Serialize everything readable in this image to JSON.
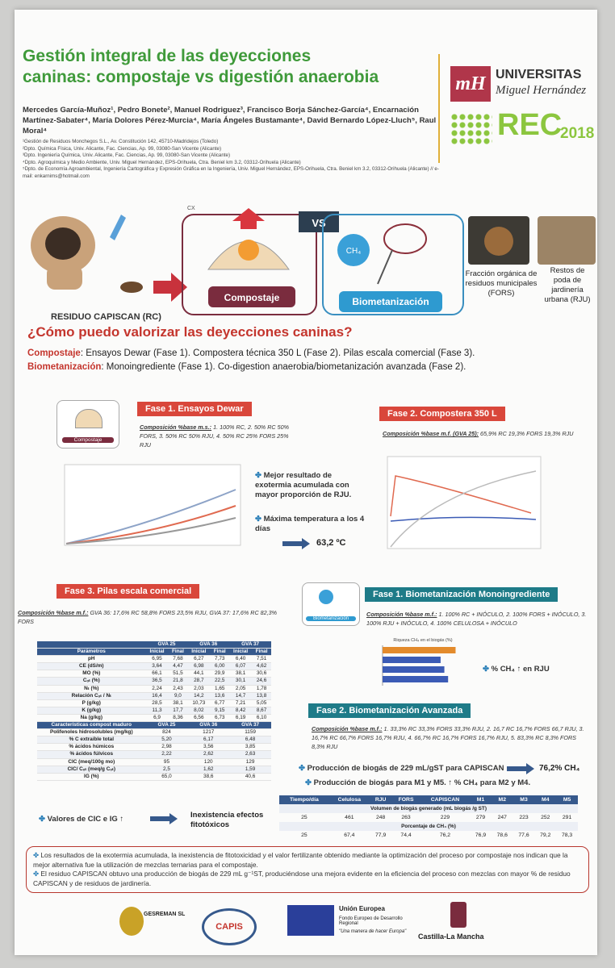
{
  "header": {
    "title_lines": [
      "Gestión integral de las deyecciones",
      "caninas: compostaje vs digestión anaerobia"
    ],
    "authors": "Mercedes García-Muñoz¹, Pedro Bonete², Manuel Rodriguez³, Francisco Borja Sánchez-García⁴, Encarnación Martínez-Sabater⁴, María Dolores Pérez-Murcia⁴, María Ángeles Bustamante⁴, David Bernardo López-Lluch⁵, Raul Moral⁴",
    "affiliations": [
      "¹Gestión de Residuos Monchegos S.L., Av. Constitución 142, 45710-Madridejos (Toledo)",
      "²Dpto. Química Física, Univ. Alicante, Fac. Ciencias, Ap. 99, 03080-San Vicente (Alicante)",
      "³Dpto. Ingeniería Química, Univ. Alicante, Fac. Ciencias, Ap. 99, 03080-San Vicente (Alicante)",
      "⁴Dpto. Agroquímica y Medio Ambiente, Univ. Miguel Hernández, EPS-Orihuela, Ctra. Beniel km 3.2, 03312-Orihuela (Alicante)",
      "⁵Dpto. de Economía Agroambiental, Ingeniería Cartográfica y Expresión Gráfica en la Ingeniería, Univ. Miguel Hernández, EPS-Orihuela, Ctra. Beniel km 3.2, 03312-Orihuela (Alicante)  // e-mail: enkarnims@hotmail.com"
    ]
  },
  "logos": {
    "umh_1": "UNIVERSITAS",
    "umh_2": "Miguel Hernández",
    "rec": "REC",
    "rec_year": "2018"
  },
  "diagram": {
    "vs": "VS",
    "cx": "CX",
    "ch4": "CH₄",
    "compostaje": "Compostaje",
    "biometanizacion": "Biometanización",
    "residuo": "RESIDUO CAPISCAN (RC)",
    "fors": "Fracción orgánica de residuos municipales (FORS)",
    "rju": "Restos de poda de jardinería urbana (RJU)"
  },
  "question": {
    "title": "¿Cómo puedo valorizar las deyecciones caninas?",
    "lines": [
      {
        "label": "Compostaje",
        "text": ": Ensayos Dewar (Fase 1). Compostera técnica 350 L (Fase 2). Pilas escala comercial (Fase 3)."
      },
      {
        "label": "Biometanización",
        "text": ": Monoingrediente (Fase 1). Co-digestion anaerobia/biometanización avanzada (Fase 2)."
      }
    ]
  },
  "compost_fase1": {
    "heading": "Fase 1. Ensayos Dewar",
    "icon_label": "Compostaje",
    "composition_label": "Composición %base m.s.:",
    "composition": "1. 100% RC, 2. 50% RC 50% FORS, 3. 50% RC 50% RJU, 4. 50% RC 25% FORS 25% RJU",
    "bullets": [
      "Mejor resultado de exotermia acumulada con mayor proporción de RJU.",
      "Máxima temperatura a los 4 días"
    ],
    "max_temp": "63,2 ºC"
  },
  "compost_fase2": {
    "heading": "Fase 2. Compostera 350 L",
    "composition_label": "Composición %base m.f. (GVA 25):",
    "composition": "65,9% RC 19,3% FORS 19,3% RJU"
  },
  "compost_fase3": {
    "heading": "Fase 3. Pilas escala comercial",
    "composition_label": "Composición %base m.f.:",
    "composition": "GVA 36: 17,6% RC 58,8% FORS 23,5% RJU, GVA 37: 17,6% RC 82,3% FORS",
    "table": {
      "groups": [
        "GVA 25",
        "GVA 36",
        "GVA 37"
      ],
      "param_header": "Parámetros",
      "sub": [
        "Inicial",
        "Final"
      ],
      "rows": [
        [
          "pH",
          "6,95",
          "7,68",
          "6,27",
          "7,73",
          "6,40",
          "7,51"
        ],
        [
          "CE (dS/m)",
          "3,64",
          "4,47",
          "6,98",
          "6,00",
          "6,07",
          "4,62"
        ],
        [
          "MO (%)",
          "66,1",
          "51,5",
          "44,1",
          "29,9",
          "38,1",
          "30,6"
        ],
        [
          "Cₒₜ (%)",
          "36,5",
          "21,8",
          "28,7",
          "22,5",
          "30,1",
          "24,6"
        ],
        [
          "Nₜ (%)",
          "2,24",
          "2,43",
          "2,03",
          "1,65",
          "2,05",
          "1,78"
        ],
        [
          "Relación Cₒₜ / Nₜ",
          "16,4",
          "9,0",
          "14,2",
          "13,6",
          "14,7",
          "13,8"
        ],
        [
          "P (g/kg)",
          "28,5",
          "38,1",
          "10,73",
          "6,77",
          "7,21",
          "5,05"
        ],
        [
          "K (g/kg)",
          "11,3",
          "17,7",
          "8,02",
          "9,15",
          "8,42",
          "8,67"
        ],
        [
          "Na (g/kg)",
          "6,9",
          "8,36",
          "6,56",
          "6,73",
          "6,19",
          "6,10"
        ]
      ],
      "mature_header": "Características compost maduro",
      "mature_rows": [
        [
          "Polifenoles hidrosolubles (mg/kg)",
          "824",
          "1217",
          "1159"
        ],
        [
          "% C extraíble total",
          "5,20",
          "6,17",
          "6,48"
        ],
        [
          "% ácidos húmicos",
          "2,98",
          "3,56",
          "3,85"
        ],
        [
          "% ácidos fúlvicos",
          "2,22",
          "2,62",
          "2,63"
        ],
        [
          "CIC (meq/100g mo)",
          "95",
          "120",
          "129"
        ],
        [
          "CIC/ Cₒₜ (meq/g Cₒₜ)",
          "2,5",
          "1,62",
          "1,59"
        ],
        [
          "IG (%)",
          "65,0",
          "38,6",
          "40,6"
        ]
      ]
    },
    "notes": [
      "Valores de CIC e IG ↑",
      "Inexistencia efectos fitotóxicos"
    ]
  },
  "bio_fase1": {
    "heading": "Fase 1. Biometanización Monoingrediente",
    "icon_label": "Biometanización",
    "composition_label": "Composición %base m.f.:",
    "composition": "1. 100% RC + INÓCULO, 2. 100% FORS + INÓCULO, 3. 100% RJU + INÓCULO, 4. 100% CELULOSA + INÓCULO",
    "chart": {
      "type": "bar",
      "title": "Riqueza CH₄ en el biogás (%)",
      "values": [
        78,
        62,
        66,
        70
      ],
      "xlim": [
        0,
        100
      ],
      "color": "#3b5bb5"
    },
    "note": "% CH₄ ↑ en RJU"
  },
  "bio_fase2": {
    "heading": "Fase 2. Biometanización Avanzada",
    "composition_label": "Composición %base m.f.:",
    "composition": "1. 33,3% RC 33,3% FORS 33,3% RJU, 2. 16,7 RC 16,7% FORS 66,7 RJU, 3. 16,7% RC 66,7% FORS 16,7% RJU, 4. 66,7% RC 16,7% FORS 16,7% RJU, 5. 83,3% RC 8,3% FORS 8,3% RJU",
    "bullets": [
      "Producción de biogás de 229 mL/gST para CAPISCAN",
      "Producción de biogás para M1 y M5. ↑ % CH₄ para M2 y M4."
    ],
    "result": "76,2% CH₄",
    "table": {
      "header": [
        "Tiempo/día",
        "Celulosa",
        "RJU",
        "FORS",
        "CAPISCAN",
        "M1",
        "M2",
        "M3",
        "M4",
        "M5"
      ],
      "sections": [
        {
          "title": "Volumen de biogás generado (mL biogás /g ST)",
          "row": [
            "25",
            "461",
            "248",
            "263",
            "229",
            "279",
            "247",
            "223",
            "252",
            "291"
          ]
        },
        {
          "title": "Porcentaje de CH₄ (%)",
          "row": [
            "25",
            "67,4",
            "77,9",
            "74,4",
            "76,2",
            "76,9",
            "78,6",
            "77,6",
            "79,2",
            "78,3"
          ]
        }
      ]
    }
  },
  "conclusions": [
    "Los resultados de la exotermia acumulada, la inexistencia de fitotoxicidad y el valor fertilizante obtenido mediante la optimización del proceso por compostaje nos indican que la mejor alternativa fue la utilización de mezclas ternarias para el compostaje.",
    "El residuo CAPISCAN obtuvo una producción de biogás de 229 mL g⁻¹ST, produciéndose una mejora evidente en la eficiencia del proceso con mezclas con mayor % de residuo CAPISCAN y de residuos de jardinería."
  ],
  "footer": {
    "gesreman": "GESREMAN SL",
    "capis": "CAPIS",
    "ue": "Unión Europea",
    "feder": "Fondo Europeo de Desarrollo Regional",
    "motto": "\"Una manera de hacer Europa\"",
    "clm": "Castilla-La Mancha"
  }
}
